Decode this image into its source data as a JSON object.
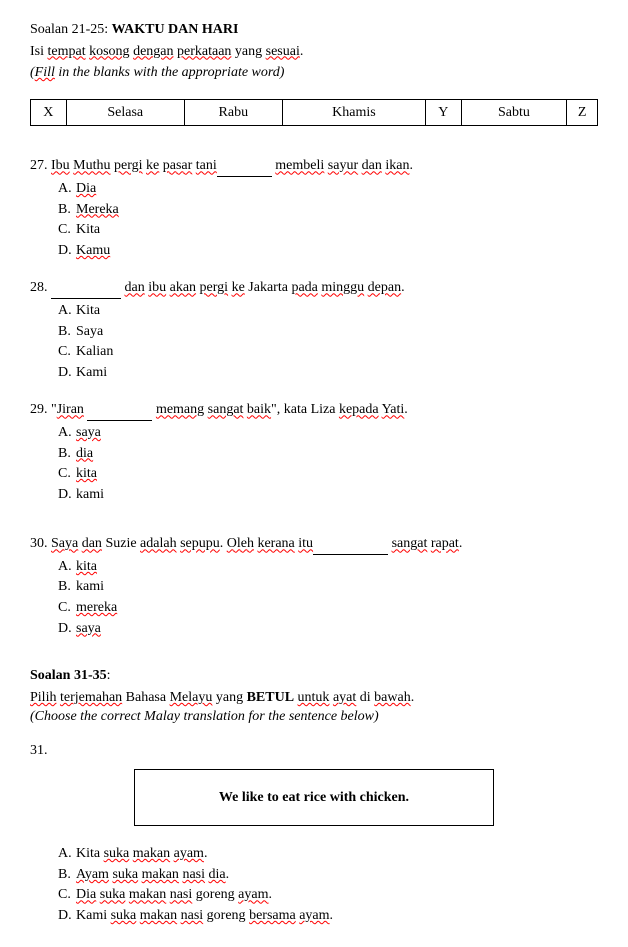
{
  "section1": {
    "heading_prefix": "Soalan 21-25: ",
    "heading_title": "WAKTU DAN HARI",
    "instruction_parts": [
      "Isi ",
      "tempat",
      " ",
      "kosong",
      " ",
      "dengan",
      " ",
      "perkataan",
      " yang ",
      "sesuai",
      "."
    ],
    "sub_instruction_parts": [
      "(",
      "Fill",
      " in the blanks with the appropriate word)"
    ]
  },
  "days_table": [
    "X",
    "Selasa",
    "Rabu",
    "Khamis",
    "Y",
    "Sabtu",
    "Z"
  ],
  "q27": {
    "num": "27. ",
    "pre_parts": [
      "Ibu",
      " ",
      "Muthu",
      " ",
      "pergi",
      " ",
      "ke",
      " ",
      "pasar",
      " ",
      "tani"
    ],
    "post_parts": [
      "membeli",
      " ",
      "sayur",
      " ",
      "dan",
      " ",
      "ikan",
      "."
    ],
    "options": [
      {
        "letter": "A.",
        "text": "Dia",
        "wavy": true
      },
      {
        "letter": "B.",
        "text": "Mereka",
        "wavy": true
      },
      {
        "letter": "C.",
        "text": "Kita",
        "wavy": false
      },
      {
        "letter": "D.",
        "text": "Kamu",
        "wavy": true
      }
    ]
  },
  "q28": {
    "num": "28. ",
    "post_parts": [
      "dan",
      " ",
      "ibu",
      " ",
      "akan",
      " ",
      "pergi",
      " ",
      "ke",
      " Jakarta ",
      "pada",
      " ",
      "minggu",
      " ",
      "depan",
      "."
    ],
    "options": [
      {
        "letter": "A.",
        "text": "Kita",
        "wavy": false
      },
      {
        "letter": "B.",
        "text": "Saya",
        "wavy": false
      },
      {
        "letter": "C.",
        "text": "Kalian",
        "wavy": false
      },
      {
        "letter": "D.",
        "text": "Kami",
        "wavy": false
      }
    ]
  },
  "q29": {
    "num": "29. ",
    "quote_open": "\"",
    "pre_word": "Jiran",
    "post_parts": [
      "memang",
      " ",
      "sangat",
      " ",
      "baik",
      "\", kata Liza ",
      "kepada",
      " ",
      "Yati",
      "."
    ],
    "options": [
      {
        "letter": "A.",
        "text": "saya",
        "wavy": true
      },
      {
        "letter": "B.",
        "text": "dia",
        "wavy": true
      },
      {
        "letter": "C.",
        "text": "kita",
        "wavy": true
      },
      {
        "letter": "D.",
        "text": "kami",
        "wavy": false
      }
    ]
  },
  "q30": {
    "num": "30. ",
    "pre_parts": [
      "Saya",
      " ",
      "dan",
      " Suzie ",
      "adalah",
      " ",
      "sepupu",
      ". ",
      "Oleh",
      " ",
      "kerana",
      " ",
      "itu"
    ],
    "post_parts": [
      "sangat",
      " ",
      "rapat",
      "."
    ],
    "options": [
      {
        "letter": "A.",
        "text": "kita",
        "wavy": true
      },
      {
        "letter": "B.",
        "text": "kami",
        "wavy": false
      },
      {
        "letter": "C.",
        "text": "mereka",
        "wavy": true
      },
      {
        "letter": "D.",
        "text": "saya",
        "wavy": true
      }
    ]
  },
  "section2": {
    "heading": "Soalan 31-35",
    "colon": ":",
    "instruction_parts": [
      "Pilih",
      " ",
      "terjemahan",
      " Bahasa ",
      "Melayu",
      " yang "
    ],
    "betul": "BETUL",
    "instruction_parts2": [
      " ",
      "untuk",
      " ",
      "ayat",
      " di ",
      "bawah",
      "."
    ],
    "sub_instruction": "(Choose the correct Malay translation for the sentence below)"
  },
  "q31": {
    "num": "31.",
    "sentence": "We like to eat rice with chicken.",
    "options": [
      {
        "letter": "A.",
        "parts": [
          "Kita ",
          "suka",
          " ",
          "makan",
          " ",
          "ayam",
          "."
        ]
      },
      {
        "letter": "B.",
        "parts": [
          "Ayam",
          " ",
          "suka",
          " ",
          "makan",
          " ",
          "nasi",
          " ",
          "dia",
          "."
        ]
      },
      {
        "letter": "C.",
        "parts": [
          "Dia",
          " ",
          "suka",
          " ",
          "makan",
          " ",
          "nasi",
          " goreng ",
          "ayam",
          "."
        ]
      },
      {
        "letter": "D.",
        "parts": [
          "Kami ",
          "suka",
          " ",
          "makan",
          " ",
          "nasi",
          " goreng ",
          "bersama",
          " ",
          "ayam",
          "."
        ]
      }
    ]
  }
}
